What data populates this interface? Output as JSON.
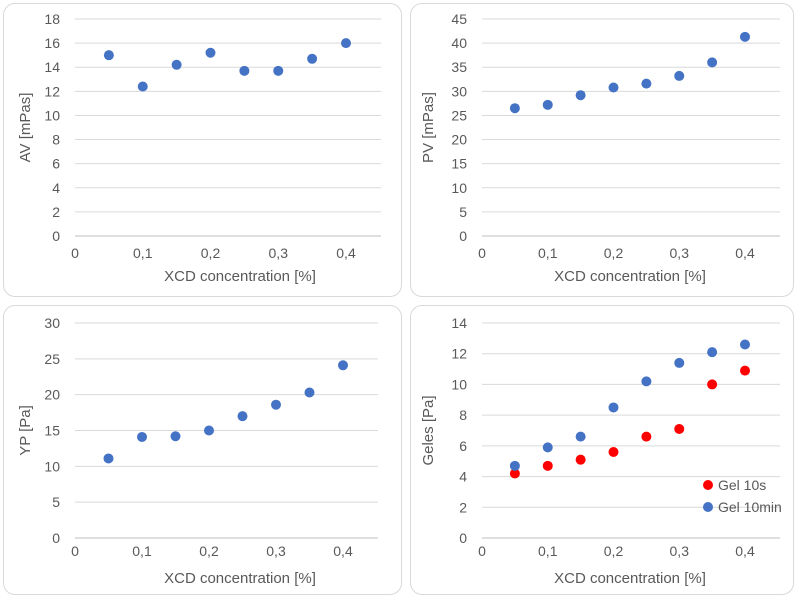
{
  "chart_data": [
    {
      "type": "scatter",
      "xlabel": "XCD concentration [%]",
      "ylabel": "AV [mPas]",
      "xlim": [
        0,
        0.4
      ],
      "ylim": [
        0,
        18
      ],
      "xticks": [
        "0",
        "0,1",
        "0,2",
        "0,3",
        "0,4"
      ],
      "yticks": [
        "0",
        "2",
        "4",
        "6",
        "8",
        "10",
        "12",
        "14",
        "16",
        "18"
      ],
      "trendline": "polynomial",
      "series": [
        {
          "x": [
            0.05,
            0.1,
            0.15,
            0.2,
            0.25,
            0.3,
            0.35,
            0.4
          ],
          "y": [
            15.0,
            12.4,
            14.2,
            15.2,
            13.7,
            13.7,
            14.7,
            16.0
          ],
          "color": "#4472c4"
        }
      ]
    },
    {
      "type": "scatter",
      "xlabel": "XCD concentration [%]",
      "ylabel": "PV [mPas]",
      "xlim": [
        0,
        0.4
      ],
      "ylim": [
        0,
        45
      ],
      "xticks": [
        "0",
        "0,1",
        "0,2",
        "0,3",
        "0,4"
      ],
      "yticks": [
        "0",
        "5",
        "10",
        "15",
        "20",
        "25",
        "30",
        "35",
        "40",
        "45"
      ],
      "trendline": "polynomial",
      "series": [
        {
          "x": [
            0.05,
            0.1,
            0.15,
            0.2,
            0.25,
            0.3,
            0.35,
            0.4
          ],
          "y": [
            26.5,
            27.2,
            29.2,
            30.8,
            31.6,
            33.2,
            36.0,
            41.3
          ],
          "color": "#4472c4"
        }
      ]
    },
    {
      "type": "scatter",
      "xlabel": "XCD concentration [%]",
      "ylabel": "YP [Pa]",
      "xlim": [
        0,
        0.4
      ],
      "ylim": [
        0,
        30
      ],
      "xticks": [
        "0",
        "0,1",
        "0,2",
        "0,3",
        "0,4"
      ],
      "yticks": [
        "0",
        "5",
        "10",
        "15",
        "20",
        "25",
        "30"
      ],
      "trendline": "polynomial",
      "series": [
        {
          "x": [
            0.05,
            0.1,
            0.15,
            0.2,
            0.25,
            0.3,
            0.35,
            0.4
          ],
          "y": [
            11.1,
            14.1,
            14.2,
            15.0,
            17.0,
            18.6,
            20.3,
            24.1
          ],
          "color": "#4472c4"
        }
      ]
    },
    {
      "type": "scatter",
      "xlabel": "XCD concentration [%]",
      "ylabel": "Geles [Pa]",
      "xlim": [
        0,
        0.4
      ],
      "ylim": [
        0,
        14
      ],
      "xticks": [
        "0",
        "0,1",
        "0,2",
        "0,3",
        "0,4"
      ],
      "yticks": [
        "0",
        "2",
        "4",
        "6",
        "8",
        "10",
        "12",
        "14"
      ],
      "trendline": "polynomial",
      "legend": "bottom-right",
      "series": [
        {
          "name": "Gel 10s",
          "x": [
            0.05,
            0.1,
            0.15,
            0.2,
            0.25,
            0.3,
            0.35,
            0.4
          ],
          "y": [
            4.2,
            4.7,
            5.1,
            5.6,
            6.6,
            7.1,
            10.0,
            10.9
          ],
          "color": "#ff0000"
        },
        {
          "name": "Gel 10min",
          "x": [
            0.05,
            0.1,
            0.15,
            0.2,
            0.25,
            0.3,
            0.35,
            0.4
          ],
          "y": [
            4.7,
            5.9,
            6.6,
            8.5,
            10.2,
            11.4,
            12.1,
            12.6
          ],
          "color": "#4472c4"
        }
      ]
    }
  ]
}
